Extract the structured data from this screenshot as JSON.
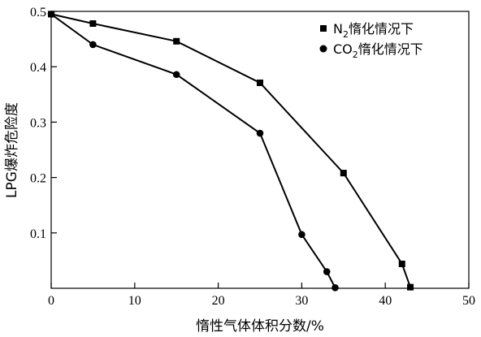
{
  "chart_data": {
    "type": "line",
    "xlabel": "惰性气体体积分数/%",
    "ylabel": "LPG爆炸危险度",
    "xlim": [
      0,
      50
    ],
    "ylim": [
      0,
      0.5
    ],
    "x_ticks": [
      0,
      10,
      20,
      30,
      40,
      50
    ],
    "y_ticks": [
      0.1,
      0.2,
      0.3,
      0.4,
      0.5
    ],
    "x_tick_labels": [
      "0",
      "10",
      "20",
      "30",
      "40",
      "50"
    ],
    "y_tick_labels": [
      "0.1",
      "0.2",
      "0.3",
      "0.4",
      "0.5"
    ],
    "grid": false,
    "legend_position": "top-right",
    "series": [
      {
        "name": "N₂惰化情况下",
        "legend_main": "N",
        "legend_sub": "2",
        "legend_rest": "惰化情况下",
        "marker": "square",
        "x": [
          0,
          5,
          15,
          25,
          35,
          42,
          43
        ],
        "y": [
          0.495,
          0.478,
          0.446,
          0.371,
          0.208,
          0.044,
          0.002
        ]
      },
      {
        "name": "CO₂惰化情况下",
        "legend_main": "CO",
        "legend_sub": "2",
        "legend_rest": "惰化情况下",
        "marker": "circle",
        "x": [
          0,
          5,
          15,
          25,
          30,
          33,
          34
        ],
        "y": [
          0.495,
          0.44,
          0.386,
          0.28,
          0.097,
          0.03,
          0.001
        ]
      }
    ]
  }
}
